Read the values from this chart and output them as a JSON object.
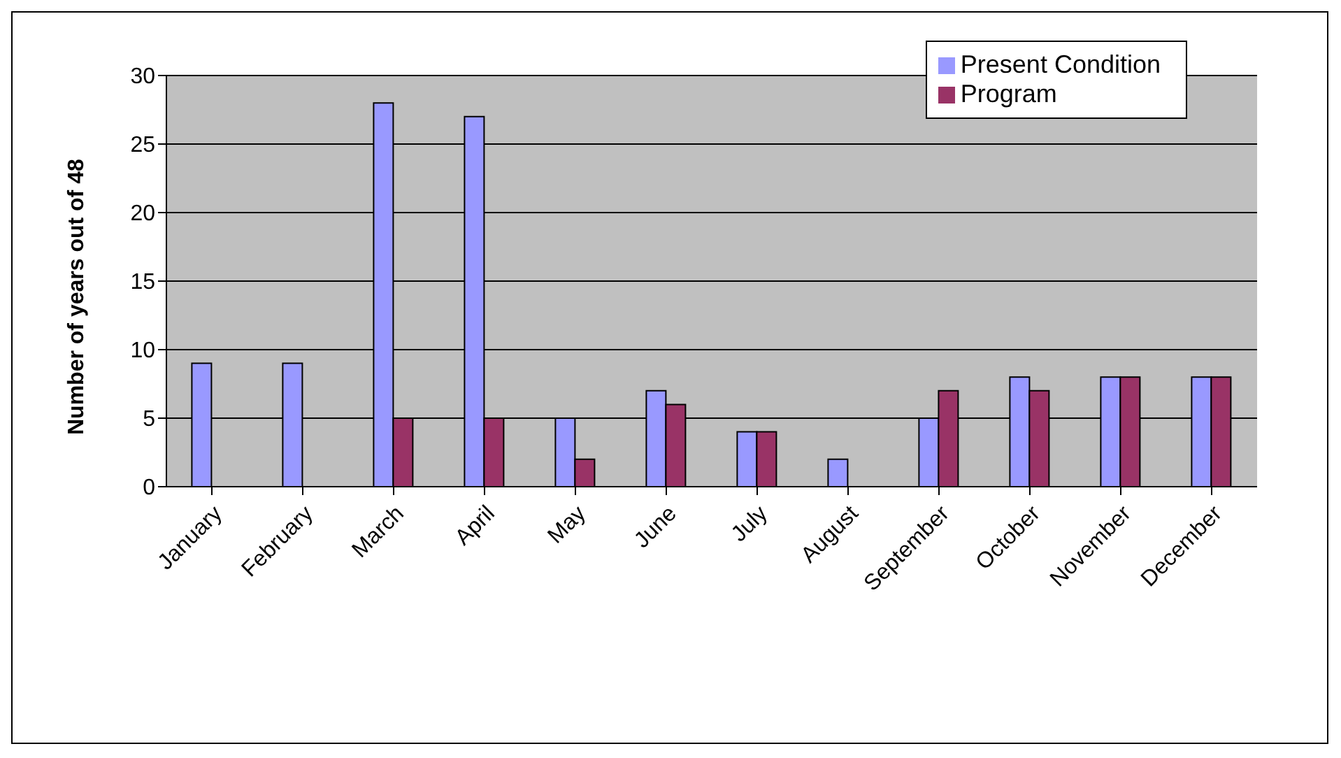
{
  "chart_data": {
    "type": "bar",
    "ylabel": "Number of years out of 48",
    "categories": [
      "January",
      "February",
      "March",
      "April",
      "May",
      "June",
      "July",
      "August",
      "September",
      "October",
      "November",
      "December"
    ],
    "series": [
      {
        "name": "Present Condition",
        "color": "#9999ff",
        "values": [
          9,
          9,
          28,
          27,
          5,
          7,
          4,
          2,
          5,
          8,
          8,
          8
        ]
      },
      {
        "name": "Program",
        "color": "#993366",
        "values": [
          0,
          0,
          5,
          5,
          2,
          6,
          4,
          0,
          7,
          7,
          8,
          8
        ]
      }
    ],
    "ylim": [
      0,
      30
    ],
    "yticks": [
      0,
      5,
      10,
      15,
      20,
      25,
      30
    ],
    "grid": "y",
    "legend": "top right"
  }
}
